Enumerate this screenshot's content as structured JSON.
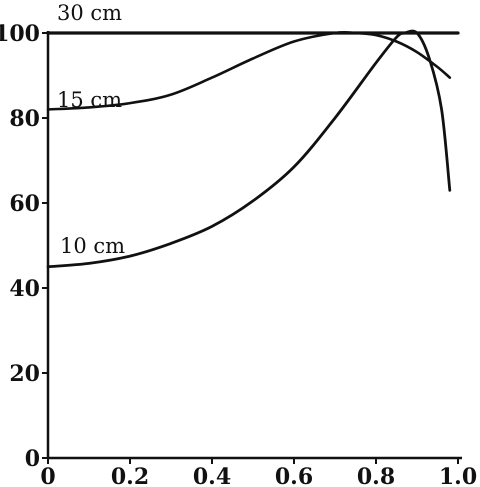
{
  "chart_data": {
    "type": "line",
    "title": "",
    "xlabel": "",
    "ylabel": "",
    "xlim": [
      0,
      1.0
    ],
    "ylim": [
      0,
      100
    ],
    "grid": false,
    "x_ticks": [
      "0",
      "0.2",
      "0.4",
      "0.6",
      "0.8",
      "1.0"
    ],
    "y_ticks": [
      "0",
      "20",
      "40",
      "60",
      "80",
      "100"
    ],
    "series": [
      {
        "name": "30 cm",
        "x": [
          0,
          0.2,
          0.4,
          0.6,
          0.8,
          0.9,
          0.97,
          1.0
        ],
        "y": [
          100,
          100,
          100,
          100,
          100,
          100,
          100,
          100
        ]
      },
      {
        "name": "15 cm",
        "x": [
          0,
          0.1,
          0.2,
          0.3,
          0.4,
          0.5,
          0.6,
          0.7,
          0.75,
          0.8,
          0.85,
          0.9,
          0.95,
          0.98
        ],
        "y": [
          82,
          82.5,
          83.5,
          85.5,
          89.5,
          94,
          98,
          100,
          100,
          99.5,
          98,
          95.5,
          92,
          89.5
        ]
      },
      {
        "name": "10 cm",
        "x": [
          0,
          0.1,
          0.2,
          0.3,
          0.4,
          0.5,
          0.6,
          0.7,
          0.8,
          0.85,
          0.87,
          0.9,
          0.93,
          0.96,
          0.98
        ],
        "y": [
          45,
          45.8,
          47.5,
          50.5,
          54.5,
          60.5,
          68.5,
          80,
          93,
          99,
          100,
          100,
          94,
          82,
          63
        ]
      }
    ]
  }
}
